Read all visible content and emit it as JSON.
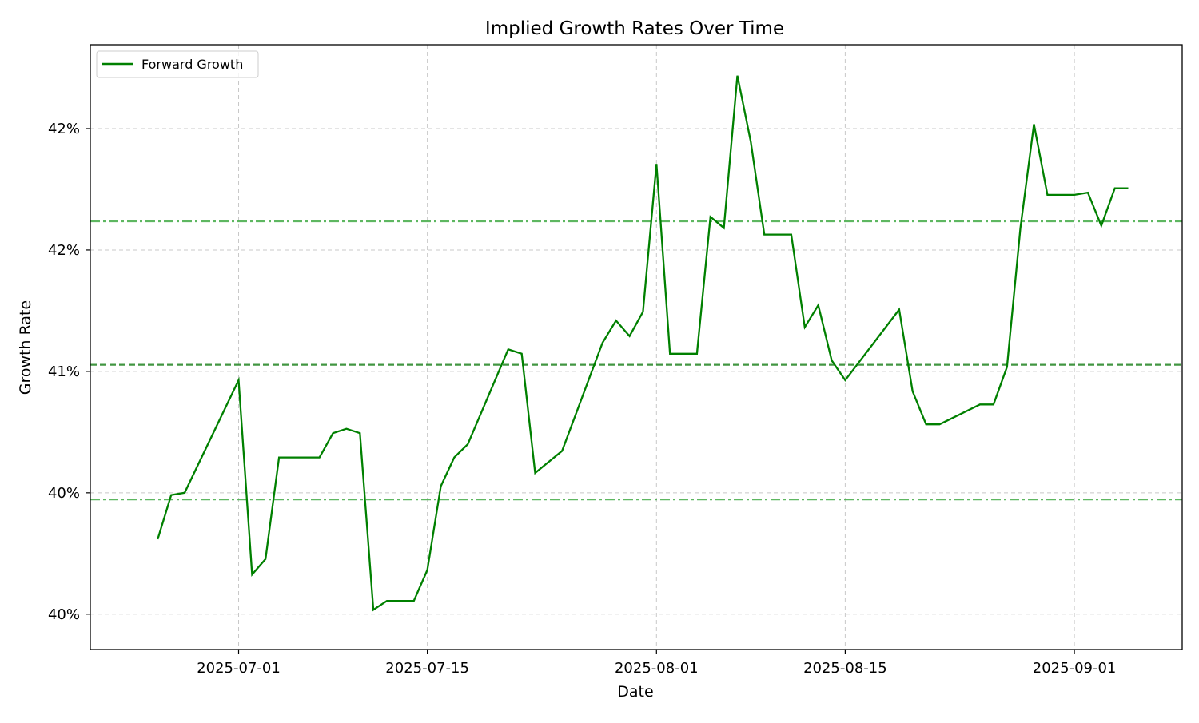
{
  "chart_data": {
    "type": "line",
    "title": "Implied Growth Rates Over Time",
    "xlabel": "Date",
    "ylabel": "Growth Rate",
    "xlim": [
      "2025-06-20",
      "2025-09-09"
    ],
    "ylim": [
      0.3984,
      0.4258
    ],
    "grid": true,
    "legend": "top-left",
    "x_ticks": [
      {
        "x": "2025-07-01",
        "label": "2025-07-01"
      },
      {
        "x": "2025-07-15",
        "label": "2025-07-15"
      },
      {
        "x": "2025-08-01",
        "label": "2025-08-01"
      },
      {
        "x": "2025-08-15",
        "label": "2025-08-15"
      },
      {
        "x": "2025-09-01",
        "label": "2025-09-01"
      }
    ],
    "y_ticks": [
      {
        "y": 0.4,
        "label": "40%"
      },
      {
        "y": 0.4055,
        "label": "40%"
      },
      {
        "y": 0.411,
        "label": "41%"
      },
      {
        "y": 0.4165,
        "label": "42%"
      },
      {
        "y": 0.422,
        "label": "42%"
      }
    ],
    "series": [
      {
        "name": "Forward Growth",
        "color": "#008000",
        "x": [
          "2025-06-25",
          "2025-06-26",
          "2025-06-27",
          "2025-07-01",
          "2025-07-02",
          "2025-07-03",
          "2025-07-04",
          "2025-07-07",
          "2025-07-08",
          "2025-07-09",
          "2025-07-10",
          "2025-07-11",
          "2025-07-12",
          "2025-07-14",
          "2025-07-15",
          "2025-07-16",
          "2025-07-17",
          "2025-07-18",
          "2025-07-21",
          "2025-07-22",
          "2025-07-23",
          "2025-07-25",
          "2025-07-28",
          "2025-07-29",
          "2025-07-30",
          "2025-07-31",
          "2025-08-01",
          "2025-08-02",
          "2025-08-04",
          "2025-08-05",
          "2025-08-06",
          "2025-08-07",
          "2025-08-08",
          "2025-08-09",
          "2025-08-11",
          "2025-08-12",
          "2025-08-13",
          "2025-08-14",
          "2025-08-15",
          "2025-08-19",
          "2025-08-20",
          "2025-08-21",
          "2025-08-22",
          "2025-08-25",
          "2025-08-26",
          "2025-08-27",
          "2025-08-28",
          "2025-08-29",
          "2025-08-30",
          "2025-09-01",
          "2025-09-02",
          "2025-09-03",
          "2025-09-04",
          "2025-09-05"
        ],
        "y": [
          0.4034,
          0.4054,
          0.4055,
          0.4106,
          0.4018,
          0.4025,
          0.4071,
          0.4071,
          0.4082,
          0.4084,
          0.4082,
          0.4002,
          0.4006,
          0.4006,
          0.402,
          0.4058,
          0.4071,
          0.4077,
          0.412,
          0.4118,
          0.4064,
          0.4074,
          0.4123,
          0.4133,
          0.4126,
          0.4137,
          0.4204,
          0.4118,
          0.4118,
          0.418,
          0.4175,
          0.4244,
          0.4214,
          0.4172,
          0.4172,
          0.413,
          0.414,
          0.4115,
          0.4106,
          0.4138,
          0.4101,
          0.4086,
          0.4086,
          0.4095,
          0.4095,
          0.4112,
          0.4175,
          0.4222,
          0.419,
          0.419,
          0.4191,
          0.4176,
          0.4193,
          0.4193
        ]
      }
    ],
    "reference_lines": [
      {
        "y": 0.4178,
        "style": "dash-dot",
        "color": "#4caf50"
      },
      {
        "y": 0.4113,
        "style": "dashed",
        "color": "#2e8b2e"
      },
      {
        "y": 0.4052,
        "style": "dash-dot",
        "color": "#4caf50"
      }
    ]
  }
}
